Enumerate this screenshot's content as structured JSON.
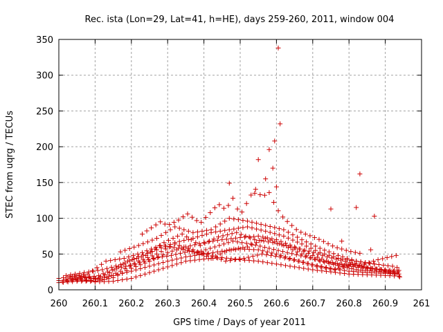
{
  "chart_data": {
    "type": "scatter",
    "title": "Rec. ista (Lon=29, Lat=41, h=HE), days 259-260, 2011, window 004",
    "xlabel": "GPS time / Days of year 2011",
    "ylabel": "STEC from uqrg / TECUs",
    "xlim": [
      260,
      261
    ],
    "ylim": [
      0,
      350
    ],
    "x_ticks": [
      "260",
      "260.1",
      "260.2",
      "260.3",
      "260.4",
      "260.5",
      "260.6",
      "260.7",
      "260.8",
      "260.9",
      "261"
    ],
    "y_ticks": [
      "0",
      "50",
      "100",
      "150",
      "200",
      "250",
      "300",
      "350"
    ],
    "grid": true,
    "marker": "+",
    "marker_color": "#cc0000",
    "tracks": [
      [
        [
          260.0,
          13
        ],
        [
          260.06,
          14
        ],
        [
          260.1,
          11
        ],
        [
          260.15,
          12
        ],
        [
          260.2,
          16
        ],
        [
          260.25,
          24
        ],
        [
          260.3,
          32
        ],
        [
          260.35,
          40
        ],
        [
          260.4,
          43
        ],
        [
          260.45,
          45
        ],
        [
          260.5,
          42
        ],
        [
          260.55,
          40
        ],
        [
          260.6,
          36
        ],
        [
          260.65,
          32
        ],
        [
          260.7,
          28
        ],
        [
          260.75,
          25
        ],
        [
          260.8,
          22
        ],
        [
          260.85,
          21
        ],
        [
          260.9,
          20
        ],
        [
          260.94,
          19
        ]
      ],
      [
        [
          260.0,
          16
        ],
        [
          260.05,
          20
        ],
        [
          260.1,
          15
        ],
        [
          260.15,
          20
        ],
        [
          260.2,
          26
        ],
        [
          260.25,
          33
        ],
        [
          260.3,
          40
        ],
        [
          260.35,
          46
        ],
        [
          260.4,
          50
        ],
        [
          260.45,
          54
        ],
        [
          260.5,
          57
        ],
        [
          260.55,
          56
        ],
        [
          260.6,
          50
        ],
        [
          260.65,
          42
        ],
        [
          260.7,
          35
        ],
        [
          260.75,
          30
        ],
        [
          260.8,
          26
        ],
        [
          260.85,
          24
        ],
        [
          260.9,
          23
        ],
        [
          260.94,
          22
        ]
      ],
      [
        [
          260.0,
          10
        ],
        [
          260.05,
          12
        ],
        [
          260.1,
          12
        ],
        [
          260.15,
          17
        ],
        [
          260.2,
          30
        ],
        [
          260.25,
          40
        ],
        [
          260.3,
          52
        ],
        [
          260.35,
          60
        ],
        [
          260.4,
          66
        ],
        [
          260.45,
          70
        ],
        [
          260.5,
          73
        ],
        [
          260.55,
          75
        ],
        [
          260.6,
          70
        ],
        [
          260.65,
          60
        ],
        [
          260.7,
          48
        ],
        [
          260.75,
          38
        ],
        [
          260.8,
          33
        ],
        [
          260.85,
          30
        ],
        [
          260.9,
          28
        ],
        [
          260.94,
          27
        ]
      ],
      [
        [
          260.02,
          20
        ],
        [
          260.07,
          24
        ],
        [
          260.12,
          28
        ],
        [
          260.17,
          35
        ],
        [
          260.22,
          46
        ],
        [
          260.27,
          56
        ],
        [
          260.32,
          66
        ],
        [
          260.37,
          72
        ],
        [
          260.42,
          80
        ],
        [
          260.47,
          84
        ],
        [
          260.52,
          88
        ],
        [
          260.57,
          82
        ],
        [
          260.62,
          75
        ],
        [
          260.67,
          64
        ],
        [
          260.72,
          52
        ],
        [
          260.77,
          44
        ],
        [
          260.82,
          40
        ],
        [
          260.87,
          36
        ],
        [
          260.92,
          33
        ],
        [
          260.94,
          30
        ]
      ],
      [
        [
          260.03,
          18
        ],
        [
          260.08,
          22
        ],
        [
          260.13,
          40
        ],
        [
          260.18,
          44
        ],
        [
          260.23,
          52
        ],
        [
          260.28,
          62
        ],
        [
          260.33,
          58
        ],
        [
          260.38,
          52
        ],
        [
          260.43,
          60
        ],
        [
          260.48,
          68
        ],
        [
          260.53,
          64
        ],
        [
          260.58,
          58
        ],
        [
          260.63,
          52
        ],
        [
          260.68,
          46
        ],
        [
          260.73,
          40
        ],
        [
          260.78,
          36
        ],
        [
          260.83,
          34
        ],
        [
          260.88,
          42
        ],
        [
          260.93,
          48
        ],
        [
          260.94,
          50
        ]
      ],
      [
        [
          260.01,
          11
        ],
        [
          260.06,
          16
        ],
        [
          260.11,
          20
        ],
        [
          260.16,
          30
        ],
        [
          260.21,
          36
        ],
        [
          260.26,
          44
        ],
        [
          260.31,
          48
        ],
        [
          260.36,
          54
        ],
        [
          260.41,
          50
        ],
        [
          260.46,
          40
        ],
        [
          260.51,
          44
        ],
        [
          260.56,
          50
        ],
        [
          260.61,
          46
        ],
        [
          260.66,
          40
        ],
        [
          260.71,
          33
        ],
        [
          260.76,
          28
        ],
        [
          260.81,
          36
        ],
        [
          260.86,
          30
        ],
        [
          260.91,
          26
        ],
        [
          260.94,
          25
        ]
      ],
      [
        [
          260.04,
          14
        ],
        [
          260.09,
          13
        ],
        [
          260.14,
          24
        ],
        [
          260.19,
          40
        ],
        [
          260.24,
          48
        ],
        [
          260.29,
          66
        ],
        [
          260.34,
          78
        ],
        [
          260.39,
          62
        ],
        [
          260.44,
          74
        ],
        [
          260.49,
          80
        ],
        [
          260.54,
          70
        ],
        [
          260.59,
          66
        ],
        [
          260.64,
          60
        ],
        [
          260.69,
          54
        ],
        [
          260.74,
          46
        ],
        [
          260.79,
          40
        ],
        [
          260.84,
          32
        ],
        [
          260.89,
          28
        ],
        [
          260.93,
          22
        ],
        [
          260.94,
          18
        ]
      ],
      [
        [
          260.02,
          15
        ],
        [
          260.07,
          18
        ],
        [
          260.12,
          14
        ],
        [
          260.17,
          26
        ],
        [
          260.22,
          40
        ],
        [
          260.27,
          50
        ],
        [
          260.32,
          64
        ],
        [
          260.37,
          56
        ],
        [
          260.42,
          44
        ],
        [
          260.47,
          56
        ],
        [
          260.52,
          60
        ],
        [
          260.57,
          72
        ],
        [
          260.62,
          62
        ],
        [
          260.67,
          50
        ],
        [
          260.72,
          40
        ],
        [
          260.77,
          34
        ],
        [
          260.82,
          28
        ],
        [
          260.87,
          26
        ],
        [
          260.92,
          24
        ],
        [
          260.94,
          23
        ]
      ],
      [
        [
          260.17,
          53
        ],
        [
          260.22,
          62
        ],
        [
          260.27,
          72
        ],
        [
          260.32,
          88
        ],
        [
          260.37,
          80
        ],
        [
          260.42,
          84
        ],
        [
          260.47,
          100
        ],
        [
          260.52,
          96
        ],
        [
          260.57,
          90
        ],
        [
          260.62,
          84
        ],
        [
          260.67,
          70
        ],
        [
          260.72,
          58
        ],
        [
          260.77,
          48
        ],
        [
          260.82,
          40
        ],
        [
          260.87,
          36
        ]
      ],
      [
        [
          260.23,
          78
        ],
        [
          260.28,
          95
        ],
        [
          260.3,
          90
        ],
        [
          260.34,
          100
        ],
        [
          260.35,
          108
        ],
        [
          260.39,
          93
        ],
        [
          260.44,
          120
        ],
        [
          260.46,
          112
        ],
        [
          260.48,
          128
        ],
        [
          260.5,
          104
        ],
        [
          260.54,
          142
        ],
        [
          260.56,
          130
        ],
        [
          260.58,
          136
        ],
        [
          260.6,
          114
        ],
        [
          260.62,
          100
        ],
        [
          260.66,
          82
        ],
        [
          260.72,
          70
        ],
        [
          260.76,
          60
        ],
        [
          260.8,
          54
        ],
        [
          260.84,
          50
        ]
      ]
    ],
    "outliers": [
      [
        260.47,
        149
      ],
      [
        260.54,
        135
      ],
      [
        260.55,
        182
      ],
      [
        260.57,
        155
      ],
      [
        260.58,
        196
      ],
      [
        260.59,
        170
      ],
      [
        260.595,
        208
      ],
      [
        260.6,
        144
      ],
      [
        260.61,
        232
      ],
      [
        260.605,
        338
      ],
      [
        260.75,
        113
      ],
      [
        260.82,
        115
      ],
      [
        260.83,
        162
      ],
      [
        260.87,
        103
      ],
      [
        260.78,
        68
      ],
      [
        260.86,
        56
      ]
    ]
  }
}
